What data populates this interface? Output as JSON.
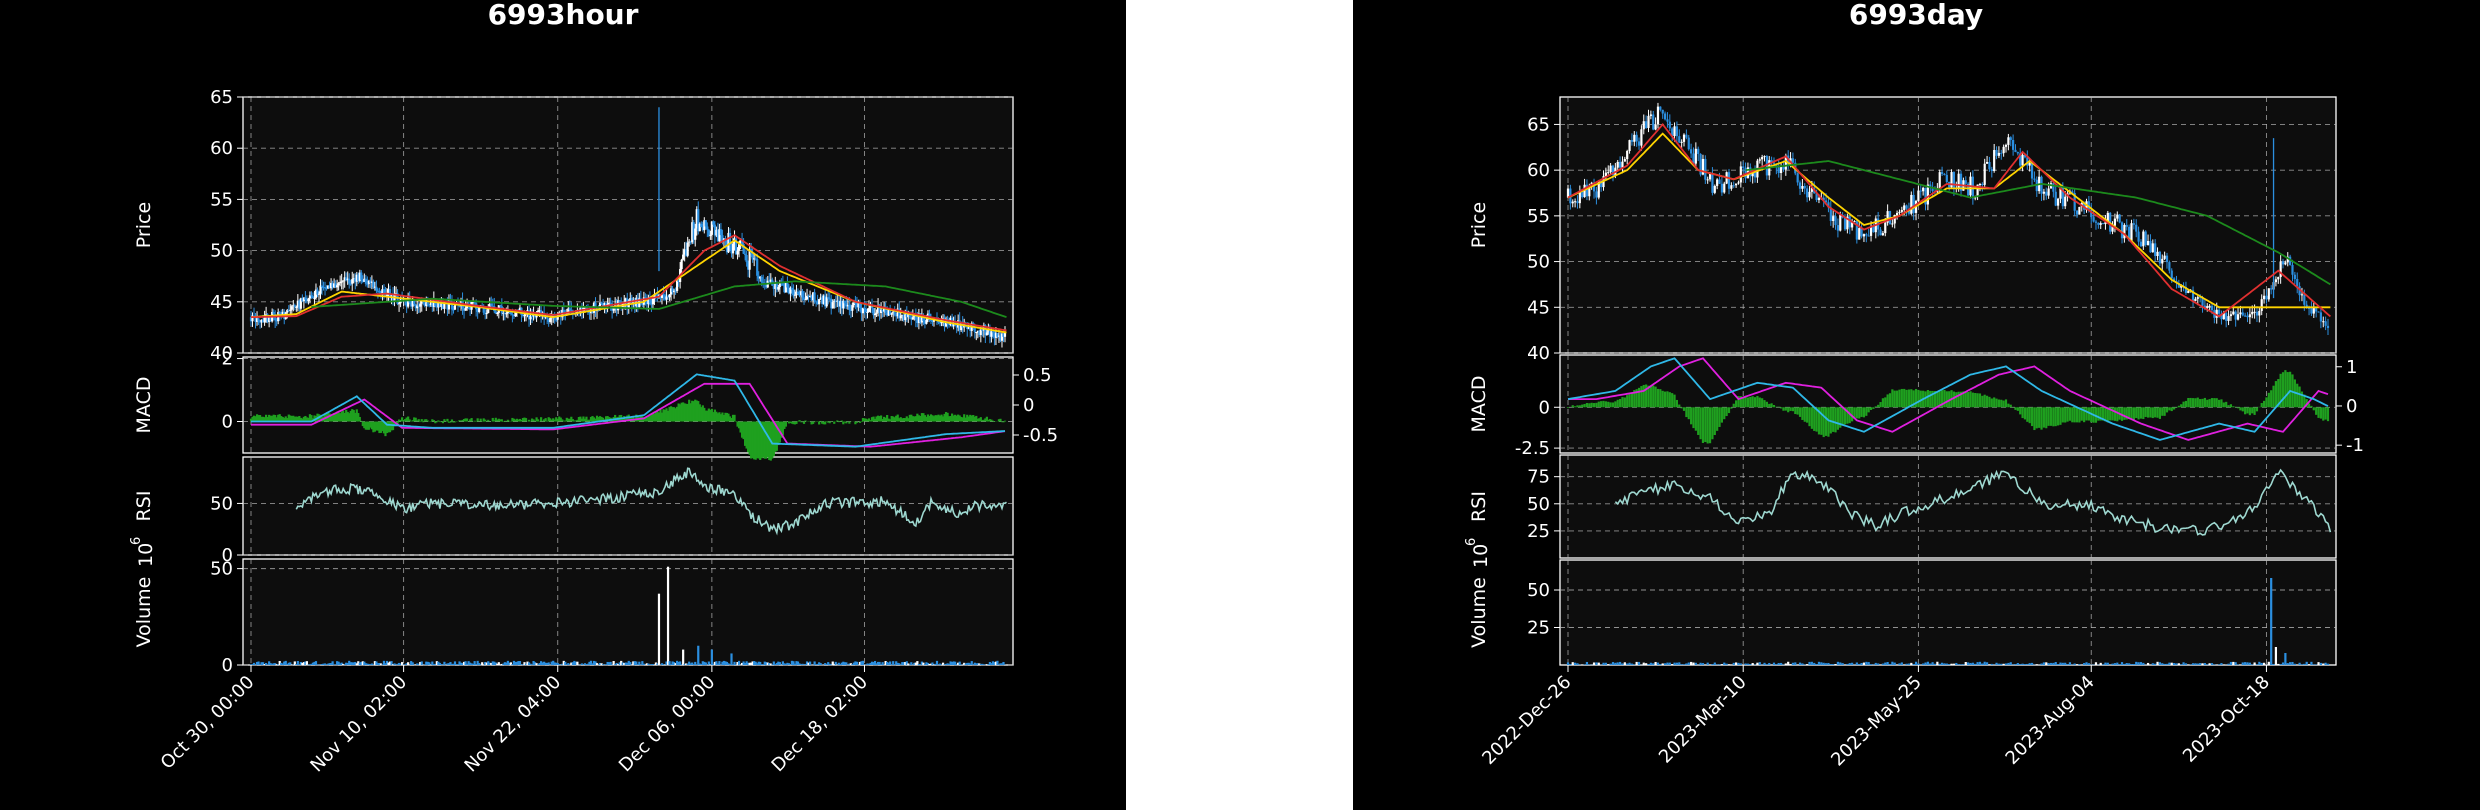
{
  "chart_data": [
    {
      "type": "candlestick",
      "title": "6993hour",
      "xlabel": "",
      "x_ticks": [
        "Oct 30, 00:00",
        "Nov 10, 02:00",
        "Nov 22, 04:00",
        "Dec 06, 00:00",
        "Dec 18, 02:00"
      ],
      "price_panel": {
        "ylabel": "Price",
        "ylim": [
          40,
          65
        ],
        "yticks": [
          40,
          45,
          50,
          55,
          60,
          65
        ],
        "close_keypoints": [
          [
            0,
            43.5
          ],
          [
            20,
            43.5
          ],
          [
            45,
            46
          ],
          [
            70,
            47.5
          ],
          [
            100,
            45
          ],
          [
            150,
            44.5
          ],
          [
            200,
            43.5
          ],
          [
            230,
            44.5
          ],
          [
            260,
            45
          ],
          [
            280,
            46
          ],
          [
            295,
            53
          ],
          [
            310,
            51
          ],
          [
            325,
            50
          ],
          [
            340,
            47
          ],
          [
            380,
            45
          ],
          [
            420,
            44
          ],
          [
            460,
            43
          ],
          [
            490,
            42
          ],
          [
            500,
            41.5
          ]
        ],
        "moving_averages": [
          {
            "color": "#ffd400",
            "keypoints": [
              [
                0,
                43.5
              ],
              [
                30,
                43.8
              ],
              [
                60,
                46
              ],
              [
                90,
                45.5
              ],
              [
                150,
                44.5
              ],
              [
                200,
                43.5
              ],
              [
                260,
                45
              ],
              [
                290,
                48
              ],
              [
                320,
                51
              ],
              [
                350,
                48
              ],
              [
                400,
                45
              ],
              [
                460,
                43
              ],
              [
                500,
                42
              ]
            ]
          },
          {
            "color": "#e03030",
            "keypoints": [
              [
                0,
                43.5
              ],
              [
                30,
                43.6
              ],
              [
                60,
                45.5
              ],
              [
                90,
                45.8
              ],
              [
                150,
                44.6
              ],
              [
                200,
                43.7
              ],
              [
                270,
                45.5
              ],
              [
                300,
                50
              ],
              [
                320,
                51.5
              ],
              [
                350,
                48.5
              ],
              [
                400,
                45
              ],
              [
                460,
                43.2
              ],
              [
                500,
                42.2
              ]
            ]
          },
          {
            "color": "#1c8a1c",
            "keypoints": [
              [
                40,
                44.5
              ],
              [
                120,
                45.3
              ],
              [
                200,
                44.6
              ],
              [
                270,
                44.3
              ],
              [
                320,
                46.5
              ],
              [
                360,
                47
              ],
              [
                420,
                46.5
              ],
              [
                470,
                45
              ],
              [
                500,
                43.5
              ]
            ]
          }
        ]
      },
      "macd_panel": {
        "ylabel": "MACD",
        "ylim": [
          -1,
          2.05
        ],
        "yticks": [
          0,
          2
        ],
        "right_ylim": [
          -0.8,
          0.8
        ],
        "right_yticks": [
          -0.5,
          0.0,
          0.5
        ],
        "macd_keypoints": [
          [
            0,
            0
          ],
          [
            40,
            0
          ],
          [
            70,
            0.8
          ],
          [
            90,
            -0.1
          ],
          [
            120,
            -0.2
          ],
          [
            200,
            -0.2
          ],
          [
            260,
            0.2
          ],
          [
            295,
            1.5
          ],
          [
            320,
            1.3
          ],
          [
            345,
            -0.7
          ],
          [
            400,
            -0.8
          ],
          [
            460,
            -0.4
          ],
          [
            500,
            -0.3
          ]
        ],
        "signal_keypoints": [
          [
            0,
            -0.1
          ],
          [
            40,
            -0.1
          ],
          [
            75,
            0.7
          ],
          [
            100,
            -0.2
          ],
          [
            200,
            -0.25
          ],
          [
            260,
            0.1
          ],
          [
            300,
            1.2
          ],
          [
            330,
            1.2
          ],
          [
            355,
            -0.7
          ],
          [
            410,
            -0.8
          ],
          [
            470,
            -0.5
          ],
          [
            500,
            -0.3
          ]
        ]
      },
      "rsi_panel": {
        "ylabel": "RSI",
        "ylim": [
          0,
          95
        ],
        "yticks": [
          0,
          50
        ],
        "keypoints": [
          [
            30,
            45
          ],
          [
            40,
            55
          ],
          [
            60,
            65
          ],
          [
            80,
            62
          ],
          [
            100,
            45
          ],
          [
            120,
            50
          ],
          [
            160,
            48
          ],
          [
            200,
            50
          ],
          [
            240,
            55
          ],
          [
            260,
            60
          ],
          [
            270,
            60
          ],
          [
            280,
            72
          ],
          [
            290,
            80
          ],
          [
            300,
            65
          ],
          [
            320,
            60
          ],
          [
            330,
            40
          ],
          [
            345,
            25
          ],
          [
            360,
            30
          ],
          [
            380,
            50
          ],
          [
            420,
            52
          ],
          [
            440,
            30
          ],
          [
            450,
            50
          ],
          [
            470,
            40
          ],
          [
            480,
            48
          ],
          [
            500,
            50
          ]
        ]
      },
      "volume_panel": {
        "ylabel": "Volume",
        "scale_label": "10",
        "scale_exp": "6",
        "ylim": [
          0,
          55
        ],
        "yticks": [
          0,
          50
        ],
        "spikes": [
          [
            270,
            37
          ],
          [
            276,
            51
          ],
          [
            286,
            8
          ],
          [
            296,
            10
          ],
          [
            305,
            8
          ],
          [
            318,
            6
          ]
        ]
      }
    },
    {
      "type": "candlestick",
      "title": "6993day",
      "xlabel": "",
      "x_ticks": [
        "2022-Dec-26",
        "2023-Mar-10",
        "2023-May-25",
        "2023-Aug-04",
        "2023-Oct-18"
      ],
      "price_panel": {
        "ylabel": "Price",
        "ylim": [
          40,
          68
        ],
        "yticks": [
          40,
          45,
          50,
          55,
          60,
          65
        ],
        "close_keypoints": [
          [
            0,
            57
          ],
          [
            12,
            58
          ],
          [
            25,
            62
          ],
          [
            38,
            66
          ],
          [
            50,
            63
          ],
          [
            62,
            58
          ],
          [
            78,
            60
          ],
          [
            92,
            61
          ],
          [
            110,
            55
          ],
          [
            125,
            53
          ],
          [
            140,
            55
          ],
          [
            158,
            59
          ],
          [
            172,
            58
          ],
          [
            185,
            63
          ],
          [
            200,
            58
          ],
          [
            225,
            55
          ],
          [
            245,
            52
          ],
          [
            260,
            47
          ],
          [
            275,
            44
          ],
          [
            290,
            44
          ],
          [
            303,
            50
          ],
          [
            312,
            45
          ],
          [
            322,
            43
          ]
        ],
        "moving_averages": [
          {
            "color": "#ffd400",
            "keypoints": [
              [
                0,
                57
              ],
              [
                25,
                60
              ],
              [
                40,
                64
              ],
              [
                55,
                60
              ],
              [
                70,
                59
              ],
              [
                92,
                61
              ],
              [
                110,
                57
              ],
              [
                125,
                54
              ],
              [
                140,
                55
              ],
              [
                160,
                58
              ],
              [
                180,
                58
              ],
              [
                195,
                61
              ],
              [
                215,
                57
              ],
              [
                235,
                53
              ],
              [
                255,
                48
              ],
              [
                275,
                45
              ],
              [
                295,
                45
              ],
              [
                322,
                45
              ]
            ]
          },
          {
            "color": "#e03030",
            "keypoints": [
              [
                0,
                57
              ],
              [
                25,
                60.5
              ],
              [
                40,
                65
              ],
              [
                55,
                60
              ],
              [
                70,
                59
              ],
              [
                92,
                61.5
              ],
              [
                110,
                56
              ],
              [
                125,
                53.5
              ],
              [
                140,
                55
              ],
              [
                160,
                58.5
              ],
              [
                180,
                58
              ],
              [
                192,
                62
              ],
              [
                212,
                57
              ],
              [
                235,
                53
              ],
              [
                255,
                47
              ],
              [
                275,
                44
              ],
              [
                300,
                49
              ],
              [
                322,
                44
              ]
            ]
          },
          {
            "color": "#1c8a1c",
            "keypoints": [
              [
                75,
                60
              ],
              [
                110,
                61
              ],
              [
                140,
                59
              ],
              [
                170,
                57
              ],
              [
                200,
                58.5
              ],
              [
                240,
                57
              ],
              [
                270,
                55
              ],
              [
                300,
                51
              ],
              [
                322,
                47.5
              ]
            ]
          }
        ]
      },
      "macd_panel": {
        "ylabel": "MACD",
        "ylim": [
          -2.8,
          3.2
        ],
        "yticks": [
          -2.5,
          0.0
        ],
        "right_ylim": [
          -1.2,
          1.3
        ],
        "right_yticks": [
          -1,
          0,
          1
        ],
        "macd_keypoints": [
          [
            0,
            0.5
          ],
          [
            20,
            1
          ],
          [
            35,
            2.5
          ],
          [
            45,
            3
          ],
          [
            60,
            0.5
          ],
          [
            80,
            1.5
          ],
          [
            95,
            1.2
          ],
          [
            110,
            -0.8
          ],
          [
            125,
            -1.5
          ],
          [
            150,
            0.5
          ],
          [
            170,
            2
          ],
          [
            185,
            2.5
          ],
          [
            200,
            1
          ],
          [
            230,
            -1
          ],
          [
            250,
            -2
          ],
          [
            275,
            -1
          ],
          [
            290,
            -1.5
          ],
          [
            305,
            1
          ],
          [
            315,
            0.5
          ],
          [
            322,
            0
          ]
        ]
      },
      "rsi_panel": {
        "ylabel": "RSI",
        "ylim": [
          0,
          95
        ],
        "yticks": [
          25,
          50,
          75
        ],
        "keypoints": [
          [
            20,
            50
          ],
          [
            30,
            60
          ],
          [
            45,
            68
          ],
          [
            60,
            55
          ],
          [
            70,
            35
          ],
          [
            85,
            40
          ],
          [
            95,
            80
          ],
          [
            108,
            68
          ],
          [
            120,
            40
          ],
          [
            130,
            30
          ],
          [
            140,
            40
          ],
          [
            165,
            60
          ],
          [
            185,
            78
          ],
          [
            195,
            60
          ],
          [
            205,
            48
          ],
          [
            220,
            50
          ],
          [
            235,
            35
          ],
          [
            250,
            28
          ],
          [
            270,
            25
          ],
          [
            290,
            45
          ],
          [
            300,
            80
          ],
          [
            310,
            58
          ],
          [
            320,
            35
          ],
          [
            322,
            20
          ]
        ]
      },
      "volume_panel": {
        "ylabel": "Volume",
        "scale_label": "10",
        "scale_exp": "6",
        "ylim": [
          0,
          70
        ],
        "yticks": [
          25,
          50
        ],
        "spikes": [
          [
            297,
            58
          ],
          [
            299,
            12
          ],
          [
            303,
            8
          ]
        ]
      }
    }
  ]
}
